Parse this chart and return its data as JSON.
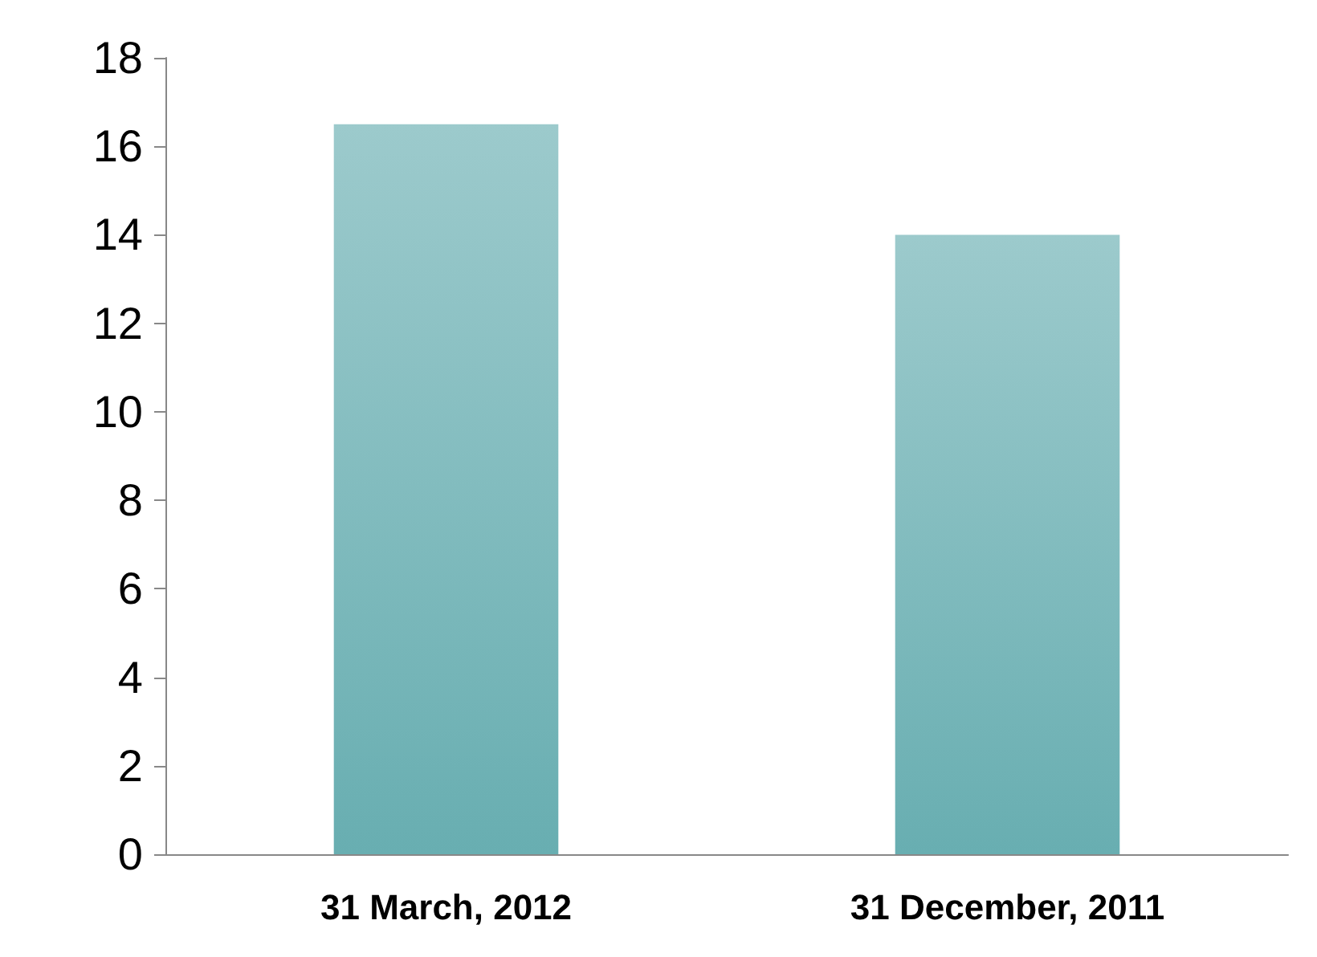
{
  "chart_data": {
    "type": "bar",
    "categories": [
      "31 March, 2012",
      "31 December, 2011"
    ],
    "values": [
      16.5,
      14
    ],
    "color": "#9ccacc",
    "ylim": [
      0,
      18
    ],
    "yticks": [
      0,
      2,
      4,
      6,
      8,
      10,
      12,
      14,
      16,
      18
    ],
    "grid": false
  }
}
